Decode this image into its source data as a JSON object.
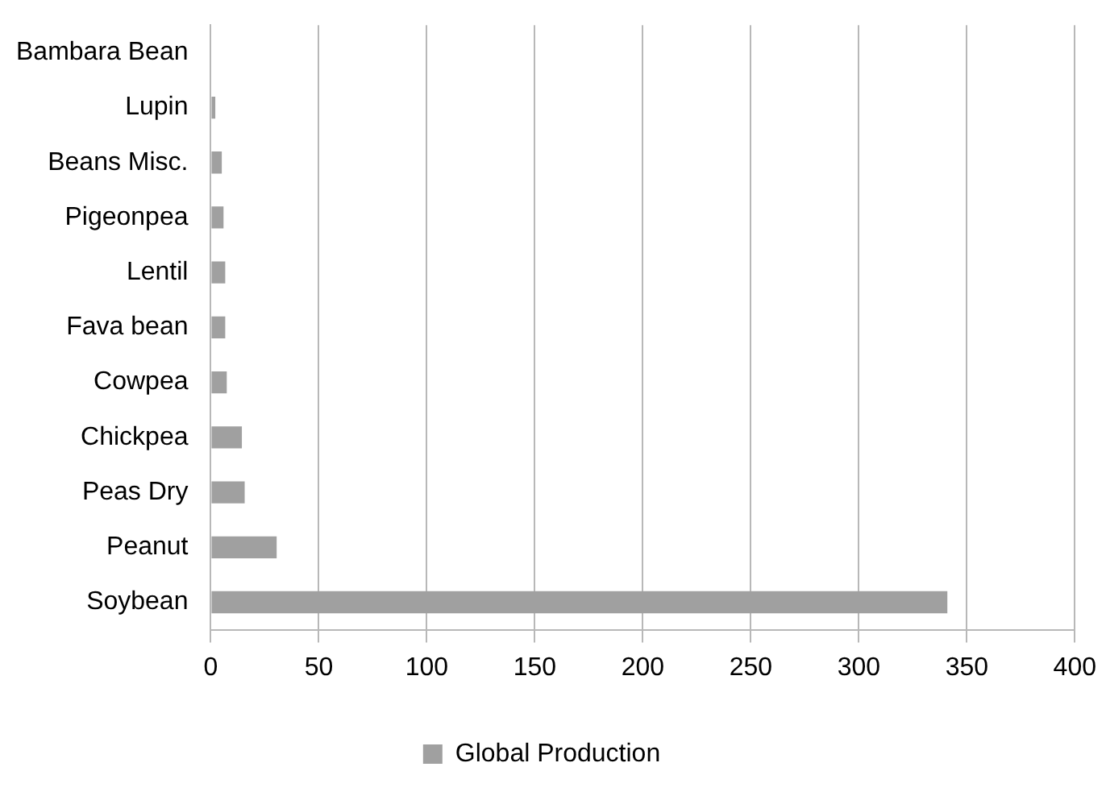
{
  "chart_data": {
    "type": "bar",
    "orientation": "horizontal",
    "categories": [
      "Bambara Bean",
      "Lupin",
      "Beans Misc.",
      "Pigeonpea",
      "Lentil",
      "Fava bean",
      "Cowpea",
      "Chickpea",
      "Peas Dry",
      "Peanut",
      "Soybean"
    ],
    "series": [
      {
        "name": "Global Production",
        "color": "#a0a0a0",
        "values": [
          null,
          2.1,
          5.1,
          5.9,
          6.7,
          6.7,
          7.4,
          14.4,
          15.7,
          30.5,
          341
        ]
      }
    ],
    "xlim": [
      0,
      400
    ],
    "xticks": [
      0,
      50,
      100,
      150,
      200,
      250,
      300,
      350,
      400
    ],
    "grid": "x",
    "legend": "bottom"
  }
}
